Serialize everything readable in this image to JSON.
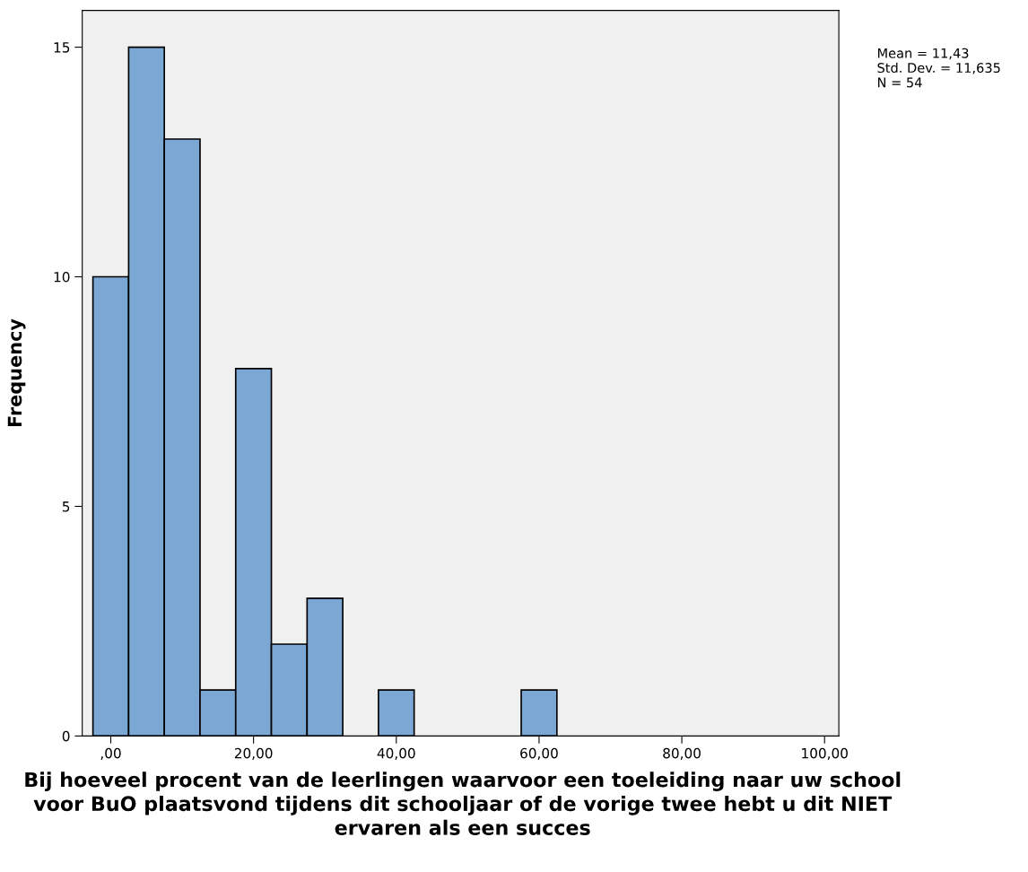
{
  "chart_data": {
    "type": "histogram",
    "xlabel": "Bij hoeveel procent van de leerlingen waarvoor een toeleiding naar uw school voor BuO plaatsvond tijdens dit schooljaar of de vorige twee hebt u dit NIET ervaren als een succes",
    "ylabel": "Frequency",
    "bins": [
      -2.5,
      2.5,
      7.5,
      12.5,
      17.5,
      22.5,
      27.5,
      32.5,
      37.5,
      42.5,
      47.5,
      52.5,
      57.5,
      62.5
    ],
    "values": [
      10,
      15,
      13,
      1,
      8,
      2,
      3,
      0,
      1,
      0,
      0,
      0,
      1
    ],
    "color": "#7ba7d5",
    "xlim": [
      -4,
      102
    ],
    "ylim": [
      0,
      15.8
    ],
    "xticks": [
      {
        "value": 0,
        "label": ",00"
      },
      {
        "value": 20,
        "label": "20,00"
      },
      {
        "value": 40,
        "label": "40,00"
      },
      {
        "value": 60,
        "label": "60,00"
      },
      {
        "value": 80,
        "label": "80,00"
      },
      {
        "value": 100,
        "label": "100,00"
      }
    ],
    "yticks": [
      0,
      5,
      10,
      15
    ],
    "grid": false,
    "legend": false,
    "annotations": [
      "Mean = 11,43\nStd. Dev. = 11,635\nN = 54"
    ]
  }
}
